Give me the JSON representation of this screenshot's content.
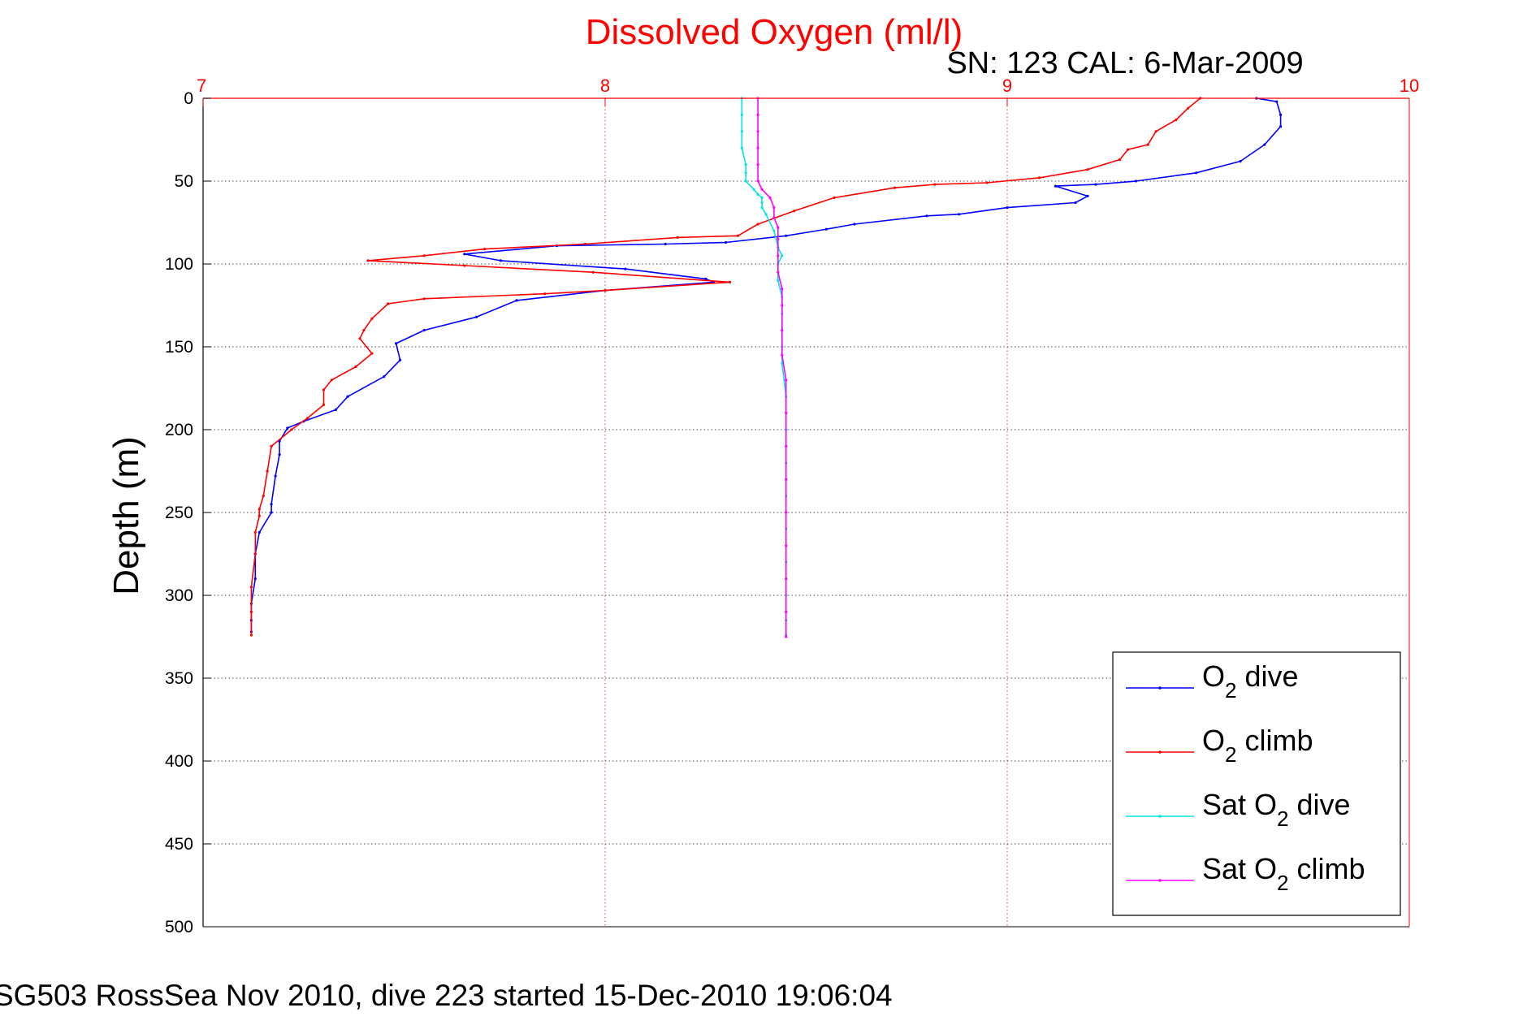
{
  "chart_data": {
    "type": "line",
    "title": "Dissolved Oxygen (ml/l)",
    "subtitle": "SN: 123  CAL: 6-Mar-2009",
    "xlabel": "",
    "ylabel": "Depth (m)",
    "footer": "SG503 RossSea Nov 2010, dive 223 started 15-Dec-2010 19:06:04",
    "xlim": [
      7,
      10
    ],
    "ylim": [
      0,
      500
    ],
    "y_reversed": true,
    "x_axis_position": "top",
    "xticks": [
      7,
      8,
      9,
      10
    ],
    "yticks": [
      0,
      50,
      100,
      150,
      200,
      250,
      300,
      350,
      400,
      450,
      500
    ],
    "grid": true,
    "legend_placement": "bottom-right",
    "colors": {
      "title": "#ff0000",
      "x_axis": "#ff0000",
      "grid_x": "#ff0000",
      "grid_y": "#000000"
    },
    "series": [
      {
        "name": "dive",
        "legend_prefix": "O",
        "legend_sub": "2",
        "legend_suffix": " dive",
        "color": "#0000ff",
        "points": [
          [
            9.62,
            0
          ],
          [
            9.67,
            2
          ],
          [
            9.68,
            10
          ],
          [
            9.68,
            17
          ],
          [
            9.64,
            28
          ],
          [
            9.58,
            38
          ],
          [
            9.47,
            45
          ],
          [
            9.32,
            50
          ],
          [
            9.22,
            52
          ],
          [
            9.12,
            53
          ],
          [
            9.2,
            59
          ],
          [
            9.17,
            63
          ],
          [
            9.0,
            66
          ],
          [
            8.88,
            70
          ],
          [
            8.8,
            71
          ],
          [
            8.62,
            76
          ],
          [
            8.55,
            79
          ],
          [
            8.45,
            83
          ],
          [
            8.3,
            87
          ],
          [
            8.15,
            88
          ],
          [
            7.88,
            89
          ],
          [
            7.65,
            94
          ],
          [
            7.74,
            98
          ],
          [
            8.05,
            103
          ],
          [
            8.25,
            109
          ],
          [
            8.27,
            111
          ],
          [
            8.0,
            116
          ],
          [
            7.78,
            122
          ],
          [
            7.68,
            132
          ],
          [
            7.55,
            140
          ],
          [
            7.48,
            148
          ],
          [
            7.49,
            158
          ],
          [
            7.45,
            168
          ],
          [
            7.36,
            180
          ],
          [
            7.33,
            188
          ],
          [
            7.25,
            195
          ],
          [
            7.21,
            199
          ],
          [
            7.19,
            207
          ],
          [
            7.19,
            215
          ],
          [
            7.18,
            228
          ],
          [
            7.17,
            245
          ],
          [
            7.17,
            250
          ],
          [
            7.14,
            262
          ],
          [
            7.13,
            275
          ],
          [
            7.13,
            290
          ],
          [
            7.12,
            305
          ],
          [
            7.12,
            315
          ],
          [
            7.12,
            322
          ]
        ]
      },
      {
        "name": "climb",
        "legend_prefix": "O",
        "legend_sub": "2",
        "legend_suffix": " climb",
        "color": "#ff0000",
        "points": [
          [
            9.48,
            0
          ],
          [
            9.45,
            6
          ],
          [
            9.42,
            13
          ],
          [
            9.37,
            20
          ],
          [
            9.35,
            28
          ],
          [
            9.3,
            31
          ],
          [
            9.28,
            37
          ],
          [
            9.2,
            43
          ],
          [
            9.08,
            48
          ],
          [
            8.95,
            51
          ],
          [
            8.82,
            52
          ],
          [
            8.72,
            54
          ],
          [
            8.57,
            60
          ],
          [
            8.47,
            68
          ],
          [
            8.38,
            76
          ],
          [
            8.33,
            83
          ],
          [
            8.18,
            84
          ],
          [
            7.95,
            88
          ],
          [
            7.7,
            91
          ],
          [
            7.55,
            95
          ],
          [
            7.41,
            98
          ],
          [
            7.65,
            101
          ],
          [
            7.97,
            105
          ],
          [
            8.31,
            111
          ],
          [
            8.0,
            116
          ],
          [
            7.85,
            118
          ],
          [
            7.55,
            121
          ],
          [
            7.46,
            124
          ],
          [
            7.42,
            133
          ],
          [
            7.4,
            140
          ],
          [
            7.39,
            145
          ],
          [
            7.42,
            154
          ],
          [
            7.38,
            162
          ],
          [
            7.32,
            170
          ],
          [
            7.3,
            176
          ],
          [
            7.3,
            185
          ],
          [
            7.26,
            193
          ],
          [
            7.22,
            200
          ],
          [
            7.17,
            210
          ],
          [
            7.16,
            225
          ],
          [
            7.15,
            240
          ],
          [
            7.14,
            248
          ],
          [
            7.14,
            252
          ],
          [
            7.13,
            262
          ],
          [
            7.13,
            275
          ],
          [
            7.12,
            295
          ],
          [
            7.12,
            310
          ],
          [
            7.12,
            324
          ]
        ]
      },
      {
        "name": "Sat dive",
        "legend_prefix": "Sat O",
        "legend_sub": "2",
        "legend_suffix": " dive",
        "color": "#00e5e5",
        "points": [
          [
            8.34,
            0
          ],
          [
            8.34,
            10
          ],
          [
            8.34,
            20
          ],
          [
            8.34,
            30
          ],
          [
            8.35,
            40
          ],
          [
            8.35,
            45
          ],
          [
            8.35,
            50
          ],
          [
            8.37,
            55
          ],
          [
            8.38,
            58
          ],
          [
            8.39,
            60
          ],
          [
            8.39,
            63
          ],
          [
            8.39,
            66
          ],
          [
            8.4,
            70
          ],
          [
            8.42,
            80
          ],
          [
            8.43,
            90
          ],
          [
            8.44,
            95
          ],
          [
            8.43,
            100
          ],
          [
            8.43,
            110
          ],
          [
            8.44,
            120
          ],
          [
            8.44,
            130
          ],
          [
            8.44,
            140
          ],
          [
            8.44,
            150
          ],
          [
            8.44,
            160
          ],
          [
            8.45,
            180
          ],
          [
            8.45,
            200
          ],
          [
            8.45,
            220
          ],
          [
            8.45,
            240
          ],
          [
            8.45,
            260
          ],
          [
            8.45,
            280
          ],
          [
            8.45,
            300
          ],
          [
            8.45,
            315
          ],
          [
            8.45,
            324
          ]
        ]
      },
      {
        "name": "Sat climb",
        "legend_prefix": "Sat O",
        "legend_sub": "2",
        "legend_suffix": " climb",
        "color": "#ff00ff",
        "points": [
          [
            8.38,
            0
          ],
          [
            8.38,
            10
          ],
          [
            8.38,
            20
          ],
          [
            8.38,
            30
          ],
          [
            8.38,
            40
          ],
          [
            8.38,
            50
          ],
          [
            8.39,
            55
          ],
          [
            8.41,
            60
          ],
          [
            8.42,
            66
          ],
          [
            8.42,
            72
          ],
          [
            8.43,
            78
          ],
          [
            8.43,
            85
          ],
          [
            8.43,
            95
          ],
          [
            8.43,
            105
          ],
          [
            8.44,
            115
          ],
          [
            8.44,
            125
          ],
          [
            8.44,
            140
          ],
          [
            8.44,
            155
          ],
          [
            8.45,
            170
          ],
          [
            8.45,
            190
          ],
          [
            8.45,
            210
          ],
          [
            8.45,
            230
          ],
          [
            8.45,
            250
          ],
          [
            8.45,
            270
          ],
          [
            8.45,
            290
          ],
          [
            8.45,
            310
          ],
          [
            8.45,
            325
          ]
        ]
      }
    ]
  }
}
